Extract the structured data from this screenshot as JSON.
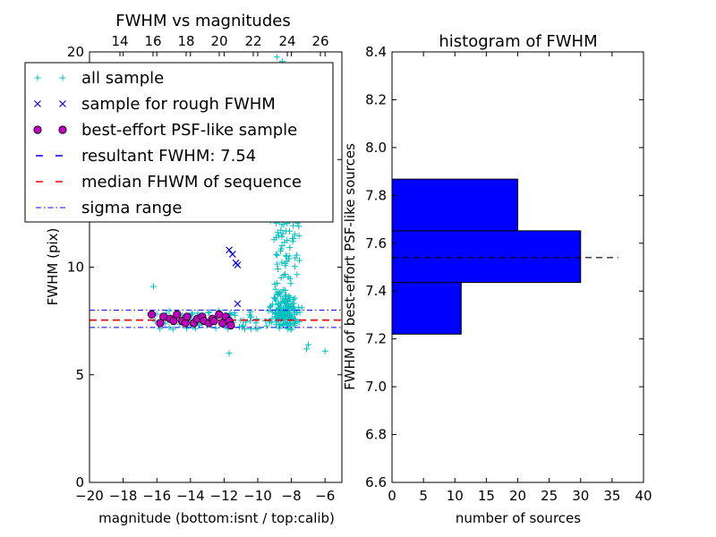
{
  "chart_data": [
    {
      "type": "scatter",
      "title": "FWHM vs magnitudes",
      "xlabel": "magnitude (bottom:isnt / top:calib)",
      "ylabel": "FWHM (pix)",
      "xlim": [
        -20,
        -5
      ],
      "ylim": [
        0,
        20
      ],
      "x_ticks": [
        "−20",
        "−18",
        "−16",
        "−14",
        "−12",
        "−10",
        "−8",
        "−6"
      ],
      "y_ticks": [
        "0",
        "5",
        "10",
        "15",
        "20"
      ],
      "top_axis_ticks": [
        "14",
        "16",
        "18",
        "20",
        "22",
        "24",
        "26"
      ],
      "legend_position": "top-left",
      "legend": [
        "all sample",
        "sample for rough FWHM",
        "best-effort PSF-like sample",
        "resultant FWHM: 7.54",
        "median FHWM of sequence",
        "sigma range"
      ],
      "series": [
        {
          "name": "all sample",
          "marker": "+",
          "color": "#00bfbf",
          "clusters": [
            {
              "x_range": [
                -10.2,
                -6.6
              ],
              "y_range": [
                5.5,
                20
              ]
            },
            {
              "x_range": [
                -16.5,
                -7.6
              ],
              "y_range": [
                7.1,
                8.0
              ]
            }
          ],
          "outliers": [
            {
              "x": -16.2,
              "y": 9.1
            },
            {
              "x": -11.7,
              "y": 6.0
            },
            {
              "x": -7.5,
              "y": 7.9
            },
            {
              "x": -7.1,
              "y": 6.2
            },
            {
              "x": -6.0,
              "y": 6.1
            },
            {
              "x": -7.0,
              "y": 6.4
            }
          ]
        },
        {
          "name": "sample for rough FWHM",
          "marker": "x",
          "color": "#0000ff",
          "points": [
            {
              "x": -11.7,
              "y": 10.8
            },
            {
              "x": -11.5,
              "y": 10.6
            },
            {
              "x": -11.3,
              "y": 10.2
            },
            {
              "x": -11.2,
              "y": 10.1
            },
            {
              "x": -11.2,
              "y": 8.3
            },
            {
              "x": -12.0,
              "y": 7.7
            },
            {
              "x": -11.8,
              "y": 7.5
            }
          ]
        },
        {
          "name": "best-effort PSF-like sample",
          "marker": "o",
          "color": "#bf00bf",
          "points": [
            {
              "x": -16.3,
              "y": 7.8
            },
            {
              "x": -15.8,
              "y": 7.4
            },
            {
              "x": -15.6,
              "y": 7.7
            },
            {
              "x": -15.2,
              "y": 7.6
            },
            {
              "x": -15.0,
              "y": 7.5
            },
            {
              "x": -14.8,
              "y": 7.8
            },
            {
              "x": -14.5,
              "y": 7.5
            },
            {
              "x": -14.3,
              "y": 7.4
            },
            {
              "x": -14.2,
              "y": 7.7
            },
            {
              "x": -13.8,
              "y": 7.4
            },
            {
              "x": -13.6,
              "y": 7.6
            },
            {
              "x": -13.3,
              "y": 7.7
            },
            {
              "x": -13.2,
              "y": 7.5
            },
            {
              "x": -12.9,
              "y": 7.4
            },
            {
              "x": -12.7,
              "y": 7.6
            },
            {
              "x": -12.6,
              "y": 7.5
            },
            {
              "x": -12.3,
              "y": 7.8
            },
            {
              "x": -12.1,
              "y": 7.4
            },
            {
              "x": -11.9,
              "y": 7.7
            },
            {
              "x": -11.7,
              "y": 7.5
            },
            {
              "x": -11.6,
              "y": 7.3
            }
          ]
        }
      ],
      "lines": [
        {
          "name": "resultant FWHM: 7.54",
          "y": 7.54,
          "style": "dashed",
          "color": "#0000ff"
        },
        {
          "name": "median FHWM of sequence",
          "y": 7.54,
          "style": "dashed",
          "color": "#ff0000"
        },
        {
          "name": "sigma range",
          "y": 7.2,
          "style": "dashdot",
          "color": "#0000ff"
        },
        {
          "name": "sigma range",
          "y": 8.0,
          "style": "dashdot",
          "color": "#0000ff"
        }
      ]
    },
    {
      "type": "bar",
      "orientation": "horizontal",
      "title": "histogram of FWHM",
      "xlabel": "number of sources",
      "ylabel": "FWHM of best-effort PSF-like sources",
      "xlim": [
        0,
        40
      ],
      "ylim": [
        6.6,
        8.4
      ],
      "x_ticks": [
        "0",
        "5",
        "10",
        "15",
        "20",
        "25",
        "30",
        "35",
        "40"
      ],
      "y_ticks": [
        "6.6",
        "6.8",
        "7.0",
        "7.2",
        "7.4",
        "7.6",
        "7.8",
        "8.0",
        "8.2",
        "8.4"
      ],
      "bar_color": "#0000ff",
      "bins": [
        {
          "y0": 7.22,
          "y1": 7.436,
          "count": 11
        },
        {
          "y0": 7.436,
          "y1": 7.652,
          "count": 30
        },
        {
          "y0": 7.652,
          "y1": 7.868,
          "count": 20
        }
      ],
      "reference_line": {
        "y": 7.54,
        "x_range": [
          0,
          36
        ],
        "style": "dashed",
        "color": "#000000"
      }
    }
  ]
}
